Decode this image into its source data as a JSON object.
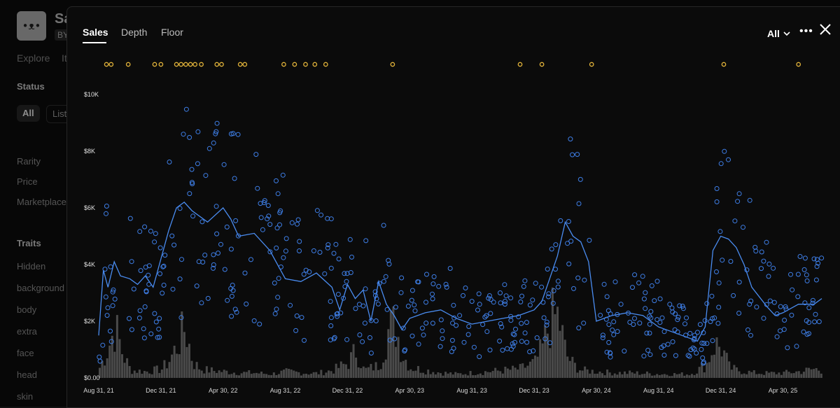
{
  "background": {
    "title": "Sa",
    "badge": "BY",
    "tabs": [
      "Explore",
      "It"
    ],
    "status_heading": "Status",
    "status_chips": [
      "All",
      "List"
    ],
    "filters": [
      "Rarity",
      "Price",
      "Marketplace"
    ],
    "traits_heading": "Traits",
    "traits": [
      "Hidden",
      "background",
      "body",
      "extra",
      "face",
      "head",
      "skin"
    ]
  },
  "modal": {
    "tabs": [
      "Sales",
      "Depth",
      "Floor"
    ],
    "active_tab": "Sales",
    "range_filter": "All",
    "more_label": "•••"
  },
  "colors": {
    "sale_point": "#3e7ee6",
    "floor_line": "#4a8cf0",
    "volume_bar": "#4a4a4a",
    "listing_marker": "#e3b43a"
  },
  "icons": {
    "close": "close-icon",
    "more": "more-icon",
    "chevron": "chevron-down-icon"
  },
  "chart_data": {
    "type": "scatter",
    "y_ticks": [
      "$0.00",
      "$2K",
      "$4K",
      "$6K",
      "$8K",
      "$10K"
    ],
    "y_tick_values": [
      0,
      2000,
      4000,
      6000,
      8000,
      10000
    ],
    "x_ticks": [
      "Aug 31, 21",
      "Dec 31, 21",
      "Apr 30, 22",
      "Aug 31, 22",
      "Dec 31, 22",
      "Apr 30, 23",
      "Aug 31, 23",
      "Dec 31, 23",
      "Apr 30, 24",
      "Aug 31, 24",
      "Dec 31, 24",
      "Apr 30, 25"
    ],
    "x_tick_values": [
      0,
      4,
      8,
      12,
      16,
      20,
      24,
      28,
      32,
      36,
      40,
      44
    ],
    "x_unit_note": "months since Aug 31, 21",
    "ylim": [
      0,
      10000
    ],
    "floor_line": [
      [
        0,
        1500
      ],
      [
        0.3,
        3800
      ],
      [
        0.6,
        3200
      ],
      [
        1,
        4100
      ],
      [
        1.4,
        3600
      ],
      [
        2,
        3500
      ],
      [
        2.5,
        3300
      ],
      [
        3,
        3600
      ],
      [
        3.5,
        3200
      ],
      [
        4,
        4200
      ],
      [
        4.5,
        5200
      ],
      [
        5,
        6000
      ],
      [
        5.5,
        6200
      ],
      [
        6,
        5900
      ],
      [
        7,
        5500
      ],
      [
        8,
        6000
      ],
      [
        8.5,
        5600
      ],
      [
        9,
        5000
      ],
      [
        10,
        5100
      ],
      [
        11,
        4500
      ],
      [
        12,
        3500
      ],
      [
        13,
        3400
      ],
      [
        14,
        3700
      ],
      [
        15,
        3200
      ],
      [
        15.5,
        2400
      ],
      [
        16,
        3300
      ],
      [
        16.5,
        2800
      ],
      [
        17,
        3100
      ],
      [
        17.5,
        2000
      ],
      [
        18,
        3400
      ],
      [
        18.5,
        2600
      ],
      [
        19,
        2200
      ],
      [
        19.5,
        1700
      ],
      [
        20,
        2100
      ],
      [
        21,
        2300
      ],
      [
        22,
        2400
      ],
      [
        23,
        2100
      ],
      [
        24,
        1900
      ],
      [
        25,
        2000
      ],
      [
        26,
        2100
      ],
      [
        27,
        2200
      ],
      [
        28,
        2400
      ],
      [
        28.5,
        2700
      ],
      [
        29,
        3500
      ],
      [
        29.5,
        4300
      ],
      [
        30,
        5500
      ],
      [
        30.5,
        5000
      ],
      [
        31,
        4800
      ],
      [
        31.5,
        4100
      ],
      [
        32,
        2000
      ],
      [
        32.5,
        2100
      ],
      [
        33,
        2200
      ],
      [
        34,
        2300
      ],
      [
        35,
        2200
      ],
      [
        36,
        1800
      ],
      [
        37,
        1600
      ],
      [
        38,
        1400
      ],
      [
        38.5,
        1300
      ],
      [
        39,
        1800
      ],
      [
        39.5,
        4500
      ],
      [
        40,
        5000
      ],
      [
        40.5,
        4900
      ],
      [
        41,
        4600
      ],
      [
        41.5,
        4000
      ],
      [
        42,
        3200
      ],
      [
        43,
        2500
      ],
      [
        43.5,
        2200
      ],
      [
        44,
        2300
      ],
      [
        45,
        2600
      ],
      [
        46,
        2600
      ],
      [
        46.5,
        2800
      ]
    ],
    "volume": [
      [
        0,
        400
      ],
      [
        0.5,
        1100
      ],
      [
        1,
        2000
      ],
      [
        1.5,
        900
      ],
      [
        2,
        300
      ],
      [
        3,
        250
      ],
      [
        4,
        350
      ],
      [
        4.5,
        700
      ],
      [
        5,
        1300
      ],
      [
        5.5,
        2000
      ],
      [
        6,
        600
      ],
      [
        6.5,
        350
      ],
      [
        7,
        300
      ],
      [
        8,
        250
      ],
      [
        9,
        200
      ],
      [
        10,
        200
      ],
      [
        11,
        150
      ],
      [
        12,
        250
      ],
      [
        13,
        200
      ],
      [
        14,
        180
      ],
      [
        15,
        300
      ],
      [
        16,
        600
      ],
      [
        16.5,
        1100
      ],
      [
        17,
        300
      ],
      [
        18,
        500
      ],
      [
        18.5,
        1800
      ],
      [
        19,
        2100
      ],
      [
        19.5,
        900
      ],
      [
        20,
        400
      ],
      [
        21,
        300
      ],
      [
        22,
        200
      ],
      [
        23,
        150
      ],
      [
        24,
        200
      ],
      [
        25,
        250
      ],
      [
        26,
        300
      ],
      [
        27,
        350
      ],
      [
        28,
        600
      ],
      [
        28.5,
        1200
      ],
      [
        29,
        2300
      ],
      [
        29.5,
        2400
      ],
      [
        30,
        900
      ],
      [
        30.5,
        500
      ],
      [
        31,
        300
      ],
      [
        32,
        250
      ],
      [
        33,
        200
      ],
      [
        34,
        200
      ],
      [
        35,
        180
      ],
      [
        36,
        150
      ],
      [
        37,
        150
      ],
      [
        38,
        150
      ],
      [
        39,
        500
      ],
      [
        39.5,
        1300
      ],
      [
        40,
        1200
      ],
      [
        40.5,
        400
      ],
      [
        41,
        300
      ],
      [
        42,
        200
      ],
      [
        43,
        180
      ],
      [
        44,
        200
      ],
      [
        45,
        250
      ],
      [
        46,
        350
      ],
      [
        46.5,
        300
      ]
    ],
    "scatter_note": "individual sales plotted as hollow blue circles"
  }
}
